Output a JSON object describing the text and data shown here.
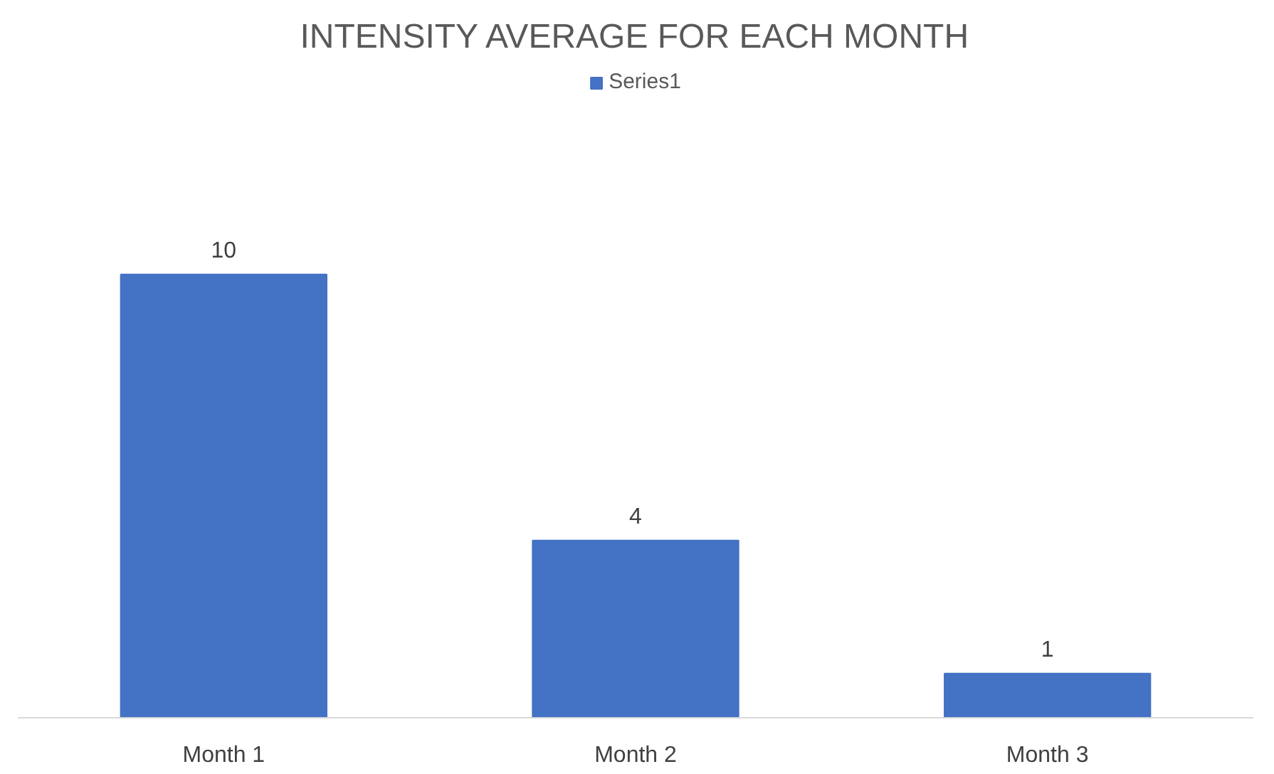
{
  "chart_data": {
    "type": "bar",
    "title": "INTENSITY AVERAGE FOR EACH MONTH",
    "categories": [
      "Month 1",
      "Month 2",
      "Month 3"
    ],
    "series": [
      {
        "name": "Series1",
        "color": "#4472c4",
        "values": [
          10,
          4,
          1
        ]
      }
    ],
    "data_labels": true,
    "legend": "top",
    "grid": false,
    "tick_labels": "x"
  }
}
